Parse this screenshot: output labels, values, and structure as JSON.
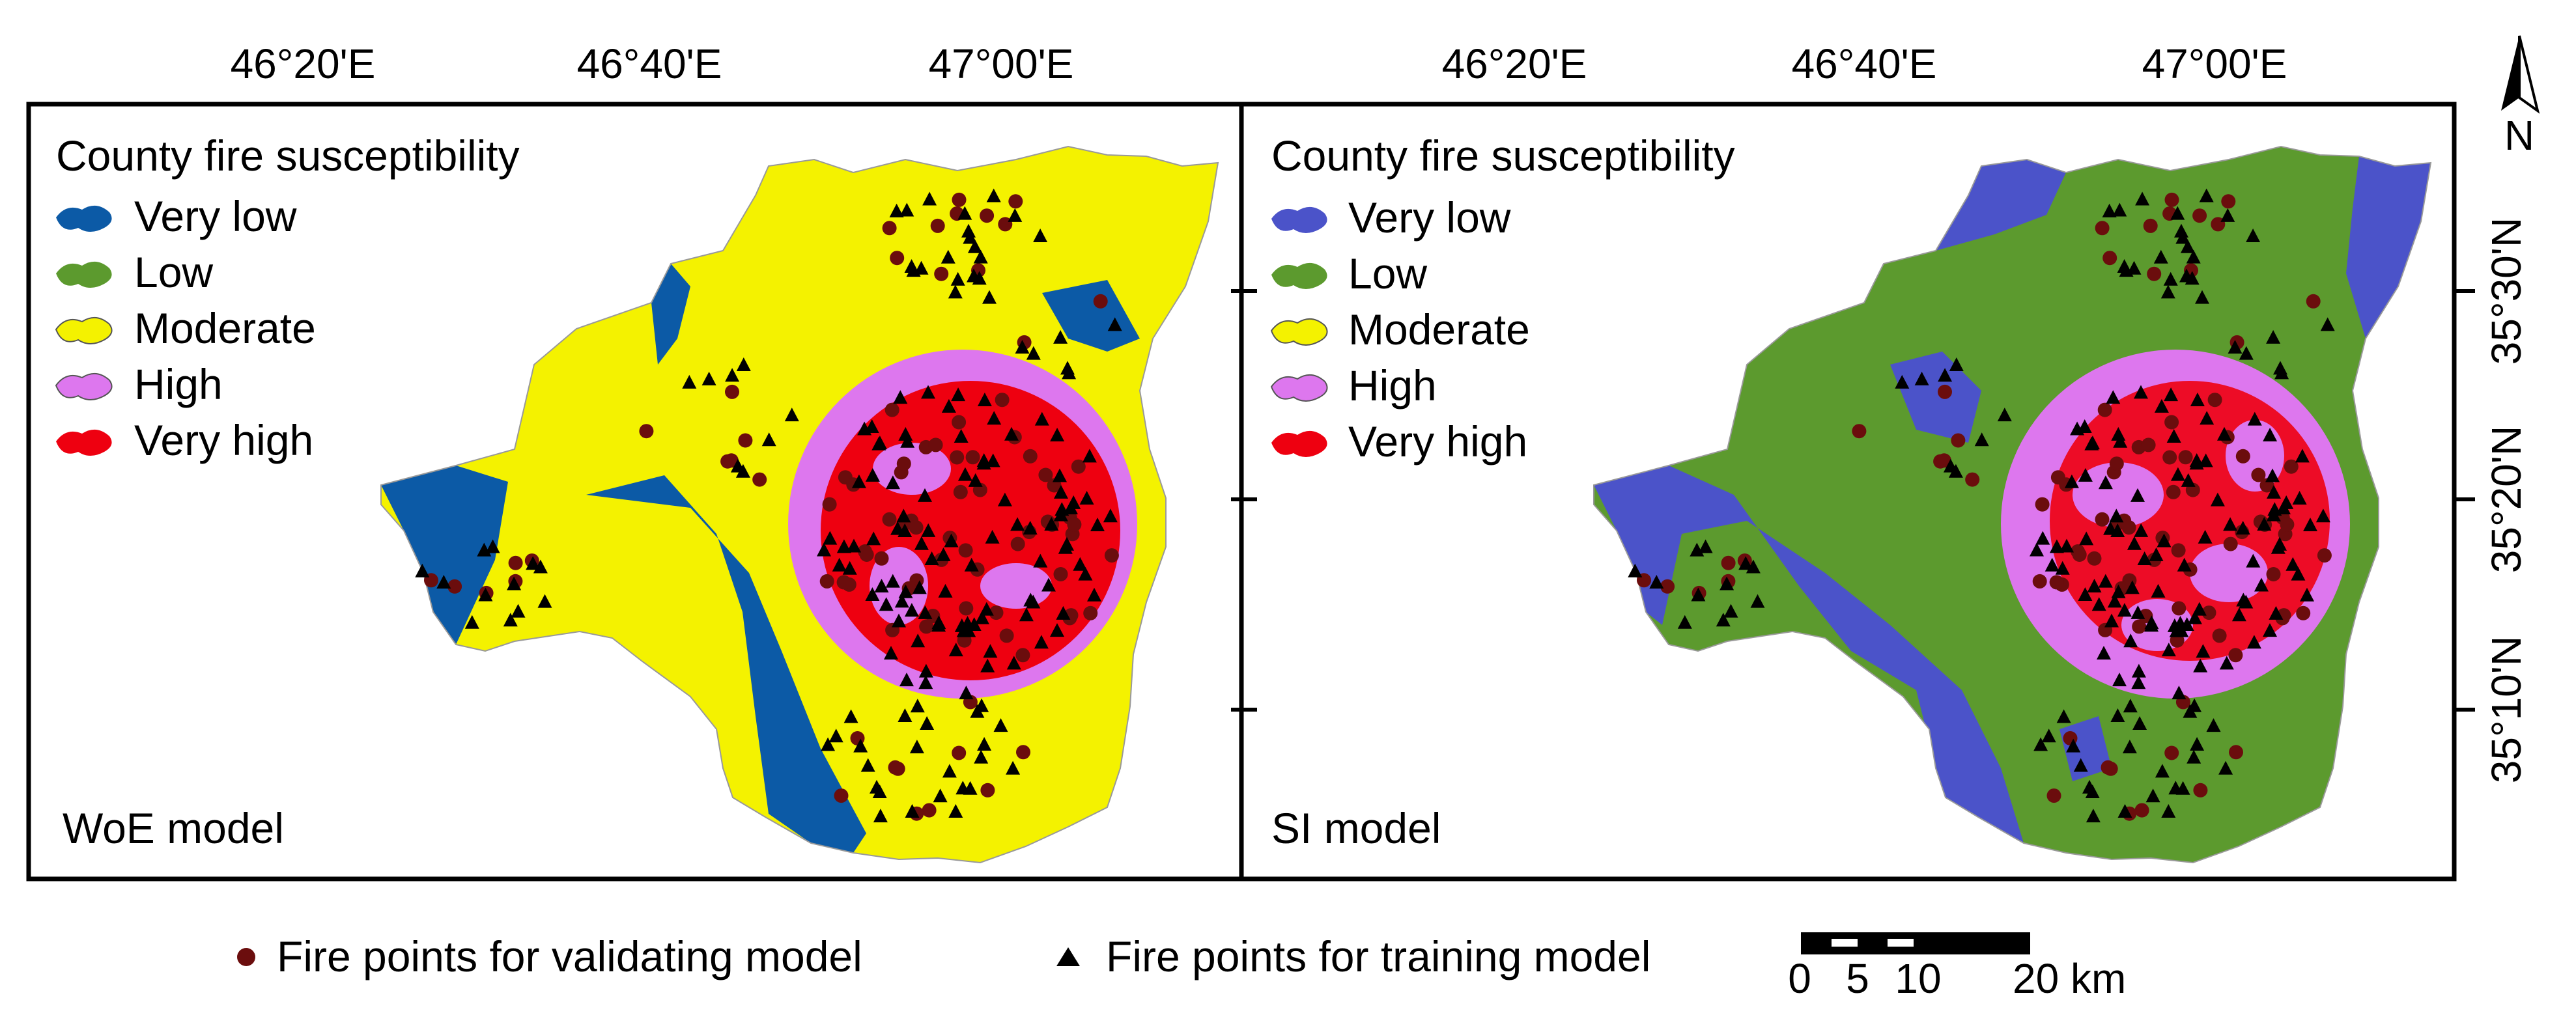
{
  "longitude_labels": [
    "46°20'E",
    "46°40'E",
    "47°00'E"
  ],
  "latitude_labels": [
    "35°30'N",
    "35°20'N",
    "35°10'N"
  ],
  "north_label": "N",
  "colors": {
    "very_low_woe": "#0c5aa6",
    "very_low_si": "#4b53c9",
    "low": "#5c9a2e",
    "moderate": "#f4f200",
    "high": "#dd77ee",
    "very_high": "#ee0010",
    "validation_point": "#6b0d0d",
    "training_point": "#000000"
  },
  "panels": [
    {
      "legend_title": "County fire susceptibility",
      "legend_items": [
        "Very low",
        "Low",
        "Moderate",
        "High",
        "Very high"
      ],
      "model_label": "WoE model"
    },
    {
      "legend_title": "County fire susceptibility",
      "legend_items": [
        "Very low",
        "Low",
        "Moderate",
        "High",
        "Very high"
      ],
      "model_label": "SI model"
    }
  ],
  "bottom_legend": {
    "validation": "Fire points for validating model",
    "training": "Fire points for training model"
  },
  "scale_bar": {
    "labels": [
      "0",
      "5",
      "10",
      "20 km"
    ]
  }
}
